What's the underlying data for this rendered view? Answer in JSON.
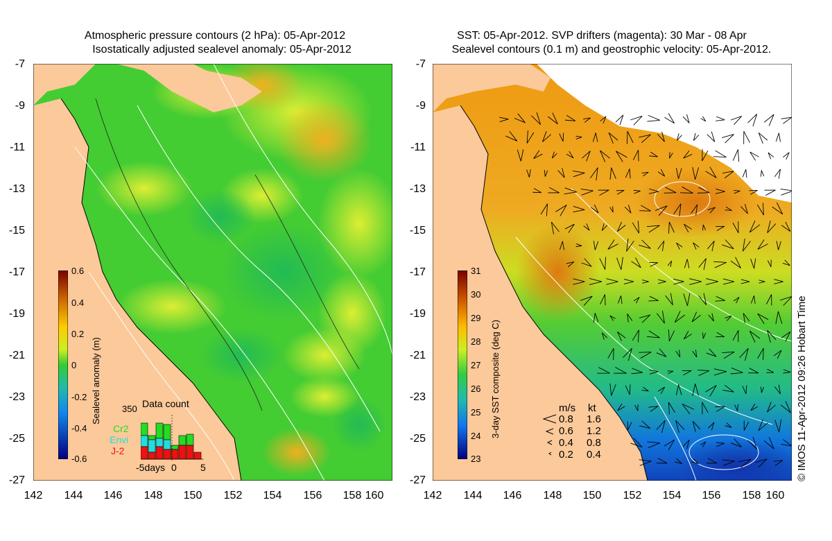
{
  "left_panel": {
    "title_line1": "Atmospheric pressure contours (2 hPa): 05-Apr-2012",
    "title_line2": "Isostatically adjusted sealevel anomaly: 05-Apr-2012",
    "y_ticks": [
      "-7",
      "-9",
      "-11",
      "-13",
      "-15",
      "-17",
      "-19",
      "-21",
      "-23",
      "-25",
      "-27"
    ],
    "x_ticks": [
      "142",
      "144",
      "146",
      "148",
      "150",
      "152",
      "154",
      "156",
      "158",
      "160"
    ],
    "colorbar": {
      "ticks": [
        "0.6",
        "0.4",
        "0.2",
        "0",
        "-0.2",
        "-0.4",
        "-0.6"
      ],
      "label": "Sealevel anomaly (m)"
    },
    "data_count": {
      "title": "Data count",
      "max_label": "350",
      "x_labels": [
        "-5days",
        "0",
        "5"
      ],
      "legend": [
        {
          "name": "Cr2",
          "color": "#22dd22"
        },
        {
          "name": "Envi",
          "color": "#22dddd"
        },
        {
          "name": "J-2",
          "color": "#ee1111"
        }
      ]
    }
  },
  "right_panel": {
    "title_line1": "SST: 05-Apr-2012. SVP drifters (magenta): 30 Mar - 08 Apr",
    "title_line2": "Sealevel contours (0.1 m) and geostrophic velocity: 05-Apr-2012.",
    "y_ticks": [
      "-7",
      "-9",
      "-11",
      "-13",
      "-15",
      "-17",
      "-19",
      "-21",
      "-23",
      "-25",
      "-27"
    ],
    "x_ticks": [
      "142",
      "144",
      "146",
      "148",
      "150",
      "152",
      "154",
      "156",
      "158",
      "160"
    ],
    "colorbar": {
      "ticks": [
        "31",
        "30",
        "29",
        "28",
        "27",
        "26",
        "25",
        "24",
        "23"
      ],
      "label": "3-day SST composite (deg C)"
    },
    "velocity_legend": {
      "header_ms": "m/s",
      "header_kt": "kt",
      "rows": [
        {
          "ms": "0.8",
          "kt": "1.6"
        },
        {
          "ms": "0.6",
          "kt": "1.2"
        },
        {
          "ms": "0.4",
          "kt": "0.8"
        },
        {
          "ms": "0.2",
          "kt": "0.4"
        }
      ]
    },
    "credit": "© IMOS 11-Apr-2012 09:26 Hobart Time"
  },
  "colors": {
    "land": "#fbc99a",
    "sla_green": "#33cc33",
    "sla_yellow": "#ccee22",
    "sst_orange": "#ee9911",
    "sst_green": "#44cc44",
    "sst_blue": "#1166cc"
  }
}
